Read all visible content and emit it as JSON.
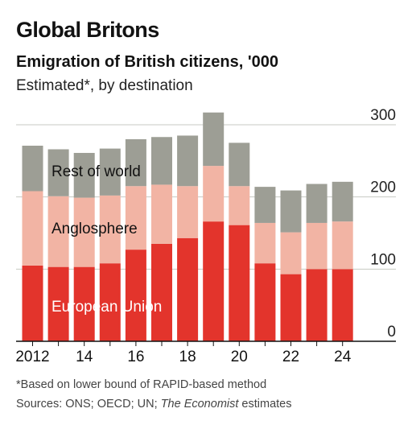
{
  "header": {
    "title": "Global Britons",
    "subtitle": "Emigration of British citizens, '000",
    "description": "Estimated*, by destination"
  },
  "footer": {
    "footnote": "*Based on lower bound of RAPID-based method",
    "sources_prefix": "Sources: ONS; OECD; UN; ",
    "sources_italic": "The Economist",
    "sources_suffix": " estimates"
  },
  "chart_data": {
    "type": "bar",
    "stacked": true,
    "x": [
      2012,
      2013,
      2014,
      2015,
      2016,
      2017,
      2018,
      2019,
      2020,
      2021,
      2022,
      2023,
      2024
    ],
    "x_tick_labels": [
      "2012",
      "14",
      "16",
      "18",
      "20",
      "22",
      "24"
    ],
    "x_tick_values": [
      2012,
      2014,
      2016,
      2018,
      2020,
      2022,
      2024
    ],
    "ylim": [
      0,
      300
    ],
    "y_ticks": [
      0,
      100,
      200,
      300
    ],
    "grid": true,
    "y_axis_position": "right",
    "series": [
      {
        "name": "European Union",
        "color": "#e3342c",
        "values": [
          105,
          103,
          103,
          108,
          127,
          135,
          143,
          166,
          161,
          108,
          93,
          100,
          100
        ]
      },
      {
        "name": "Anglosphere",
        "color": "#f2b4a4",
        "values": [
          103,
          98,
          96,
          94,
          88,
          82,
          72,
          77,
          54,
          56,
          58,
          64,
          66
        ]
      },
      {
        "name": "Rest of world",
        "color": "#9d9e95",
        "values": [
          63,
          65,
          62,
          65,
          65,
          66,
          70,
          74,
          60,
          50,
          58,
          54,
          55
        ]
      }
    ]
  }
}
